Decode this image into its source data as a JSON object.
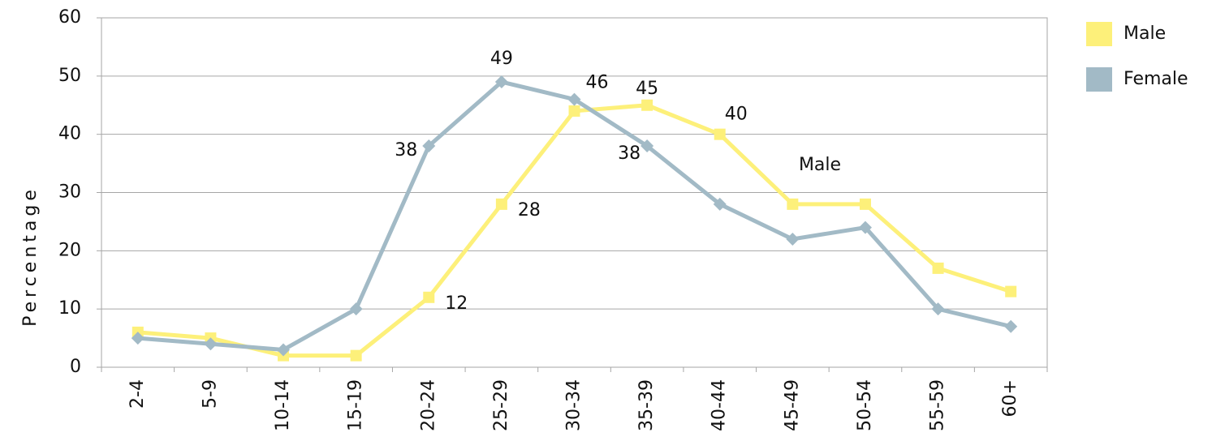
{
  "chart_data": {
    "type": "line",
    "y_label": "Percentage",
    "categories": [
      "2-4",
      "5-9",
      "10-14",
      "15-19",
      "20-24",
      "25-29",
      "30-34",
      "35-39",
      "40-44",
      "45-49",
      "50-54",
      "55-59",
      "60+"
    ],
    "series": [
      {
        "name": "Male",
        "color": "#fdf07a",
        "marker": "square",
        "values": [
          6,
          5,
          2,
          2,
          12,
          28,
          44,
          45,
          40,
          28,
          28,
          17,
          13
        ]
      },
      {
        "name": "Female",
        "color": "#a2bac6",
        "marker": "diamond",
        "values": [
          5,
          4,
          3,
          10,
          38,
          49,
          46,
          38,
          28,
          22,
          24,
          10,
          7
        ]
      }
    ],
    "annotations": [
      "Male"
    ],
    "ylim": [
      0,
      60
    ],
    "yticks": [
      0,
      10,
      20,
      30,
      40,
      50,
      60
    ],
    "grid": true,
    "legend": "right"
  }
}
